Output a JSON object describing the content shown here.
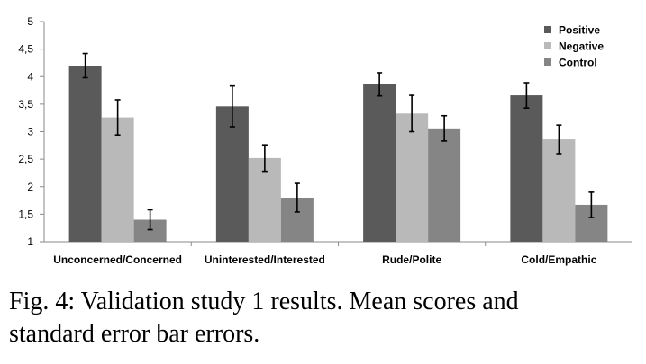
{
  "chart_data": {
    "type": "bar",
    "categories": [
      "Unconcerned/Concerned",
      "Uninterested/Interested",
      "Rude/Polite",
      "Cold/Empathic"
    ],
    "series": [
      {
        "name": "Positive",
        "color": "#5a5a5a",
        "values": [
          4.2,
          3.46,
          3.86,
          3.66
        ],
        "errors": [
          0.22,
          0.37,
          0.21,
          0.23
        ]
      },
      {
        "name": "Negative",
        "color": "#b9b9b9",
        "values": [
          3.26,
          2.52,
          3.33,
          2.86
        ],
        "errors": [
          0.32,
          0.24,
          0.33,
          0.26
        ]
      },
      {
        "name": "Control",
        "color": "#858585",
        "values": [
          1.4,
          1.8,
          3.06,
          1.67
        ],
        "errors": [
          0.18,
          0.26,
          0.23,
          0.23
        ]
      }
    ],
    "ylim": [
      1,
      5
    ],
    "yticks": [
      "1",
      "1,5",
      "2",
      "2,5",
      "3",
      "3,5",
      "4",
      "4,5",
      "5"
    ],
    "grid": false,
    "legend_position": "top-right",
    "error_bars": true
  },
  "caption": {
    "line1": "Fig. 4: Validation study 1 results. Mean scores and",
    "line2": "standard error bar errors."
  }
}
